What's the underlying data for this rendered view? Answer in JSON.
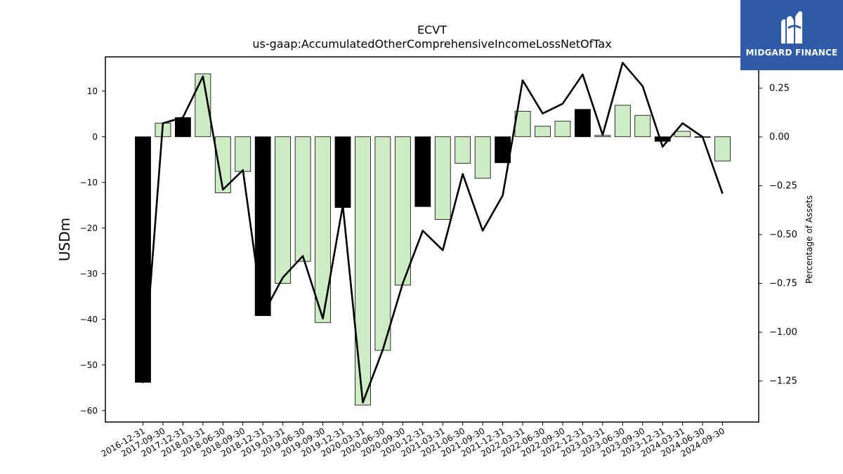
{
  "logo": {
    "text": "MIDGARD FINANCE",
    "background": "#2f5aa8"
  },
  "chart_data": {
    "type": "bar",
    "title": "ECVT",
    "subtitle": "us-gaap:AccumulatedOtherComprehensiveIncomeLossNetOfTax",
    "ylabel": "USDm",
    "y2label": "Percentage of Assets",
    "ylim": [
      -62.5,
      17.5
    ],
    "y2lim": [
      -1.46,
      0.41
    ],
    "yticks": [
      10,
      0,
      -10,
      -20,
      -30,
      -40,
      -50,
      -60
    ],
    "y2ticks": [
      0.25,
      0.0,
      -0.25,
      -0.5,
      -0.75,
      -1.0,
      -1.25
    ],
    "y2tick_labels": [
      "0.25",
      "0.00",
      "−0.25",
      "−0.50",
      "−0.75",
      "−1.00",
      "−1.25"
    ],
    "categories": [
      "2016-12-31",
      "2017-09-30",
      "2017-12-31",
      "2018-03-31",
      "2018-06-30",
      "2018-09-30",
      "2018-12-31",
      "2019-03-31",
      "2019-06-30",
      "2019-09-30",
      "2019-12-31",
      "2020-03-31",
      "2020-06-30",
      "2020-09-30",
      "2020-12-31",
      "2021-03-31",
      "2021-06-30",
      "2021-09-30",
      "2021-12-31",
      "2022-03-31",
      "2022-06-30",
      "2022-09-30",
      "2022-12-31",
      "2023-03-31",
      "2023-06-30",
      "2023-09-30",
      "2023-12-31",
      "2024-03-31",
      "2024-06-30",
      "2024-09-30"
    ],
    "series": [
      {
        "type": "bar",
        "values": [
          -53.8,
          3.0,
          4.2,
          13.8,
          -12.3,
          -7.6,
          -39.2,
          -32.1,
          -27.3,
          -40.7,
          -15.5,
          -58.8,
          -46.8,
          -32.5,
          -15.3,
          -18.1,
          -5.8,
          -9.1,
          -5.7,
          5.6,
          2.3,
          3.4,
          6.0,
          0.3,
          6.9,
          4.7,
          -1.0,
          1.2,
          -0.1,
          -5.3
        ],
        "highlight": [
          true,
          false,
          true,
          false,
          false,
          false,
          true,
          false,
          false,
          false,
          true,
          false,
          false,
          false,
          true,
          false,
          false,
          false,
          true,
          false,
          false,
          false,
          true,
          false,
          false,
          false,
          true,
          false,
          false,
          false
        ],
        "colors": {
          "normal": "#cdebc5",
          "highlight": "#000000",
          "edge": "#000000"
        }
      },
      {
        "type": "line",
        "axis": "right",
        "values": [
          -1.26,
          0.07,
          0.1,
          0.31,
          -0.27,
          -0.17,
          -0.91,
          -0.72,
          -0.61,
          -0.93,
          -0.35,
          -1.36,
          -1.09,
          -0.75,
          -0.48,
          -0.58,
          -0.19,
          -0.48,
          -0.3,
          0.29,
          0.12,
          0.17,
          0.32,
          0.01,
          0.38,
          0.26,
          -0.05,
          0.07,
          0.0,
          -0.29
        ],
        "color": "#000000"
      }
    ]
  }
}
